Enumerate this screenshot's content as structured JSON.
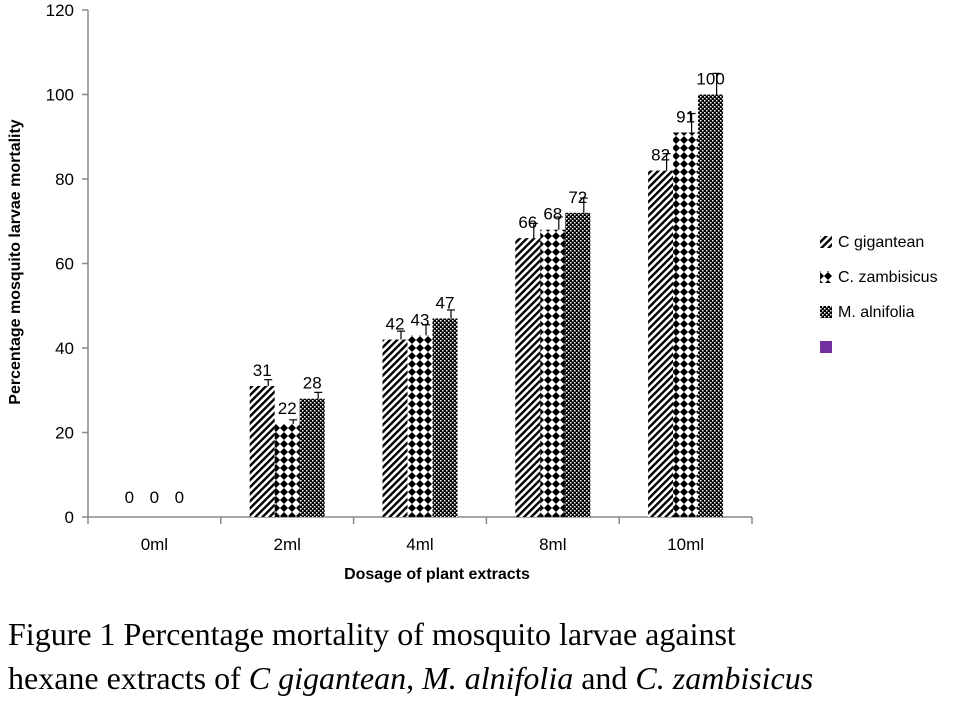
{
  "chart_data": {
    "type": "bar",
    "categories": [
      "0ml",
      "2ml",
      "4ml",
      "8ml",
      "10ml"
    ],
    "series": [
      {
        "name": "C gigantean",
        "values": [
          0,
          31,
          42,
          66,
          82
        ],
        "error": [
          0,
          1.5,
          2,
          3.5,
          4
        ],
        "pattern": "diagonal-stripes"
      },
      {
        "name": "C. zambisicus",
        "values": [
          0,
          22,
          43,
          68,
          91
        ],
        "error": [
          0,
          1,
          2.5,
          3,
          4.5
        ],
        "pattern": "diamonds"
      },
      {
        "name": "M. alnifolia",
        "values": [
          0,
          28,
          47,
          72,
          100
        ],
        "error": [
          0,
          1.5,
          2,
          3.5,
          5
        ],
        "pattern": "checker"
      }
    ],
    "extra_legend_swatch_color": "#7030A0",
    "xlabel": "Dosage of plant extracts",
    "ylabel": "Percentage mosquito larvae mortality",
    "ylim": [
      0,
      120
    ],
    "yticks": [
      0,
      20,
      40,
      60,
      80,
      100,
      120
    ],
    "grid": false,
    "legend_position": "right"
  },
  "caption": {
    "line1": "Figure 1 Percentage mortality of mosquito larvae against",
    "line2_prefix": "hexane extracts of ",
    "species1": "C gigantean",
    "sep1": ", ",
    "species2": "M. alnifolia",
    "sep2": " and ",
    "species3": "C. zambisicus"
  }
}
